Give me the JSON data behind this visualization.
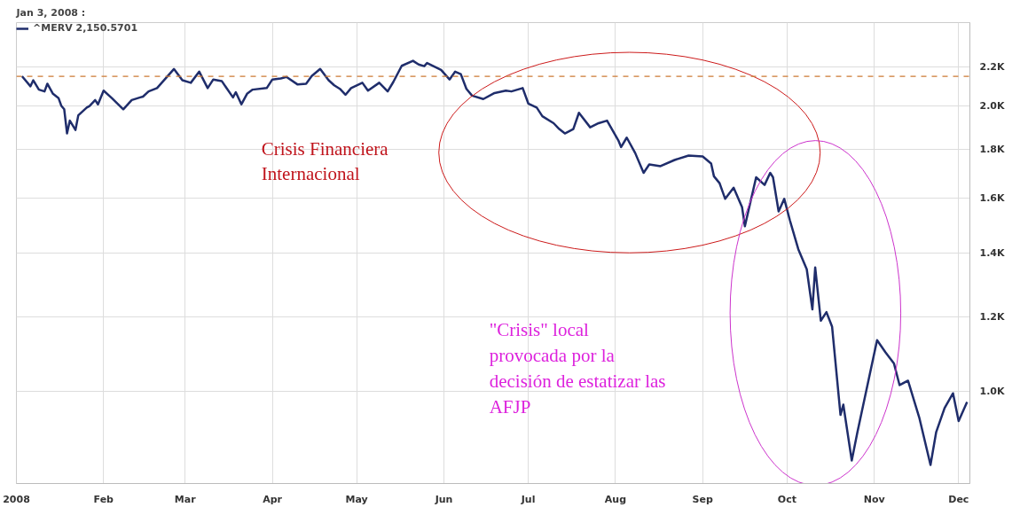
{
  "chart_data": {
    "type": "line",
    "title": "Jan 3, 2008 :",
    "x": [
      "2008-01-03",
      "2008-01-06",
      "2008-01-07",
      "2008-01-09",
      "2008-01-11",
      "2008-01-12",
      "2008-01-14",
      "2008-01-16",
      "2008-01-17",
      "2008-01-18",
      "2008-01-19",
      "2008-01-20",
      "2008-01-22",
      "2008-01-23",
      "2008-01-26",
      "2008-01-27",
      "2008-01-29",
      "2008-01-30",
      "2008-02-01",
      "2008-02-04",
      "2008-02-08",
      "2008-02-11",
      "2008-02-14",
      "2008-02-15",
      "2008-02-17",
      "2008-02-20",
      "2008-02-23",
      "2008-02-26",
      "2008-02-29",
      "2008-03-03",
      "2008-03-06",
      "2008-03-09",
      "2008-03-11",
      "2008-03-14",
      "2008-03-18",
      "2008-03-19",
      "2008-03-21",
      "2008-03-23",
      "2008-03-25",
      "2008-03-30",
      "2008-04-01",
      "2008-04-04",
      "2008-04-06",
      "2008-04-10",
      "2008-04-13",
      "2008-04-15",
      "2008-04-18",
      "2008-04-21",
      "2008-04-23",
      "2008-04-25",
      "2008-04-27",
      "2008-04-29",
      "2008-05-03",
      "2008-05-05",
      "2008-05-09",
      "2008-05-12",
      "2008-05-14",
      "2008-05-17",
      "2008-05-21",
      "2008-05-23",
      "2008-05-25",
      "2008-05-26",
      "2008-05-31",
      "2008-06-03",
      "2008-06-05",
      "2008-06-07",
      "2008-06-09",
      "2008-06-11",
      "2008-06-15",
      "2008-06-19",
      "2008-06-23",
      "2008-06-25",
      "2008-06-29",
      "2008-07-01",
      "2008-07-04",
      "2008-07-06",
      "2008-07-10",
      "2008-07-12",
      "2008-07-14",
      "2008-07-17",
      "2008-07-19",
      "2008-07-23",
      "2008-07-26",
      "2008-07-29",
      "2008-08-02",
      "2008-08-03",
      "2008-08-05",
      "2008-08-08",
      "2008-08-11",
      "2008-08-13",
      "2008-08-17",
      "2008-08-22",
      "2008-08-27",
      "2008-09-01",
      "2008-09-04",
      "2008-09-05",
      "2008-09-07",
      "2008-09-09",
      "2008-09-12",
      "2008-09-15",
      "2008-09-16",
      "2008-09-20",
      "2008-09-23",
      "2008-09-25",
      "2008-09-26",
      "2008-09-28",
      "2008-09-30",
      "2008-10-02",
      "2008-10-05",
      "2008-10-08",
      "2008-10-10",
      "2008-10-11",
      "2008-10-13",
      "2008-10-15",
      "2008-10-17",
      "2008-10-20",
      "2008-10-21",
      "2008-10-24",
      "2008-10-26",
      "2008-11-02",
      "2008-11-05",
      "2008-11-08",
      "2008-11-10",
      "2008-11-13",
      "2008-11-17",
      "2008-11-21",
      "2008-11-23",
      "2008-11-26",
      "2008-11-29",
      "2008-12-01",
      "2008-12-04"
    ],
    "series": [
      {
        "name": "^MERV 2,150.5701",
        "color": "#1f2d6b",
        "values": [
          2150.57,
          2099,
          2130,
          2082,
          2073,
          2112,
          2061,
          2039,
          2001,
          1985,
          1872,
          1931,
          1888,
          1956,
          1993,
          2001,
          2030,
          2009,
          2077,
          2039,
          1985,
          2030,
          2043,
          2047,
          2073,
          2090,
          2139,
          2189,
          2130,
          2117,
          2175,
          2090,
          2134,
          2126,
          2043,
          2069,
          2009,
          2061,
          2082,
          2090,
          2134,
          2139,
          2147,
          2108,
          2112,
          2152,
          2189,
          2130,
          2104,
          2086,
          2056,
          2090,
          2117,
          2077,
          2117,
          2073,
          2121,
          2206,
          2233,
          2213,
          2204,
          2221,
          2184,
          2134,
          2175,
          2162,
          2086,
          2052,
          2035,
          2065,
          2077,
          2073,
          2090,
          2013,
          1993,
          1952,
          1919,
          1892,
          1872,
          1892,
          1968,
          1900,
          1919,
          1931,
          1841,
          1811,
          1853,
          1785,
          1701,
          1736,
          1729,
          1755,
          1774,
          1770,
          1740,
          1687,
          1659,
          1597,
          1641,
          1565,
          1494,
          1683,
          1652,
          1701,
          1683,
          1549,
          1597,
          1516,
          1413,
          1346,
          1221,
          1352,
          1188,
          1213,
          1171,
          945,
          969,
          846,
          906,
          1133,
          1100,
          1071,
          1016,
          1027,
          939,
          837,
          906,
          961,
          996,
          931,
          975
        ]
      }
    ],
    "xlim": [
      "2008-01-01",
      "2008-12-05"
    ],
    "xticks": [
      {
        "value": "2008-01-01",
        "label": "2008"
      },
      {
        "value": "2008-02-01",
        "label": "Feb"
      },
      {
        "value": "2008-03-01",
        "label": "Mar"
      },
      {
        "value": "2008-04-01",
        "label": "Apr"
      },
      {
        "value": "2008-05-01",
        "label": "May"
      },
      {
        "value": "2008-06-01",
        "label": "Jun"
      },
      {
        "value": "2008-07-01",
        "label": "Jul"
      },
      {
        "value": "2008-08-01",
        "label": "Aug"
      },
      {
        "value": "2008-09-01",
        "label": "Sep"
      },
      {
        "value": "2008-10-01",
        "label": "Oct"
      },
      {
        "value": "2008-11-01",
        "label": "Nov"
      },
      {
        "value": "2008-12-01",
        "label": "Dec"
      }
    ],
    "ylim": [
      800,
      2450
    ],
    "log": true,
    "yticks": [
      {
        "value": 1000,
        "label": "1.0K"
      },
      {
        "value": 1200,
        "label": "1.2K"
      },
      {
        "value": 1400,
        "label": "1.4K"
      },
      {
        "value": 1600,
        "label": "1.6K"
      },
      {
        "value": 1800,
        "label": "1.8K"
      },
      {
        "value": 2000,
        "label": "2.0K"
      },
      {
        "value": 2200,
        "label": "2.2K"
      }
    ],
    "ref_lines": [
      {
        "axis": "y",
        "value": 2150.57,
        "color": "#cc7a33",
        "line_style": "dashed"
      }
    ],
    "annotations": [
      "Crisis Financiera\nInternacional",
      "\"Crisis\" local\nprovocada por la\ndecisión de estatizar las\nAFJP"
    ],
    "grid": true,
    "legend": "top left",
    "marker": "none",
    "line_style": "solid"
  }
}
